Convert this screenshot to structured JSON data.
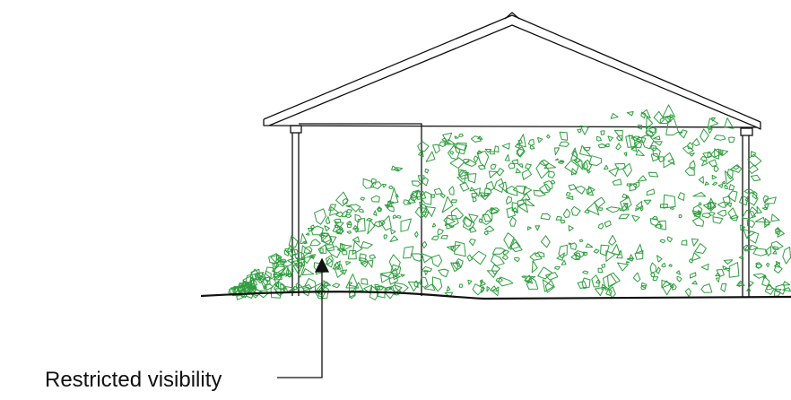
{
  "annotation": {
    "label": "Restricted visibility"
  },
  "colors": {
    "line": "#111111",
    "foliage": "#2f9e3f",
    "background": "#ffffff"
  }
}
